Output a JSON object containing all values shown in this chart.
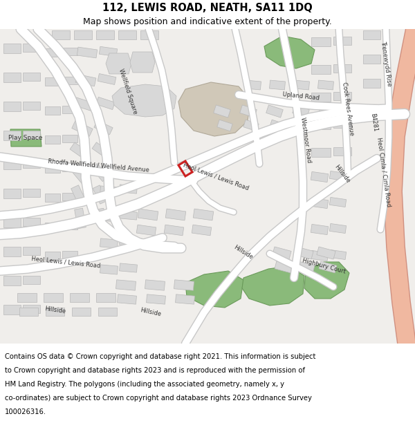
{
  "title": "112, LEWIS ROAD, NEATH, SA11 1DQ",
  "subtitle": "Map shows position and indicative extent of the property.",
  "footer_lines": [
    "Contains OS data © Crown copyright and database right 2021. This information is subject",
    "to Crown copyright and database rights 2023 and is reproduced with the permission of",
    "HM Land Registry. The polygons (including the associated geometry, namely x, y",
    "co-ordinates) are subject to Crown copyright and database rights 2023 Ordnance Survey",
    "100026316."
  ],
  "title_fontsize": 10.5,
  "subtitle_fontsize": 9,
  "footer_fontsize": 7.2,
  "bg_color": "#ffffff",
  "map_bg": "#f0eeeb",
  "road_white": "#ffffff",
  "road_edge": "#c8c8c8",
  "building_color": "#d8d8d8",
  "building_edge": "#b8b8b8",
  "green_color": "#8aba7a",
  "green_edge": "#6a9a5a",
  "pink_color": "#f0b8a0",
  "pink_edge": "#d09080",
  "tan_color": "#d0c8b8",
  "tan_edge": "#b0a898",
  "red_color": "#cc2222",
  "label_color": "#222222",
  "label_fontsize": 6.0
}
